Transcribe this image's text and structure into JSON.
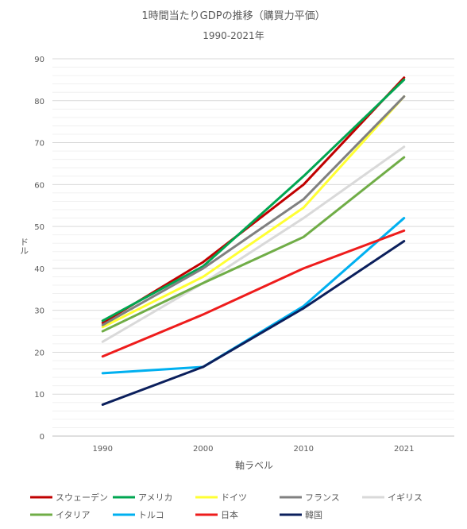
{
  "chart_data": {
    "type": "line",
    "title": "1時間当たりGDPの推移（購買力平価）",
    "subtitle": "1990-2021年",
    "xlabel": "軸ラベル",
    "ylabel": "ドル",
    "ylim": [
      0,
      90
    ],
    "yticks": [
      0,
      10,
      20,
      30,
      40,
      50,
      60,
      70,
      80,
      90
    ],
    "grid": true,
    "legend_position": "bottom",
    "categories": [
      "1990",
      "2000",
      "2010",
      "2021"
    ],
    "series": [
      {
        "name": "スウェーデン",
        "color": "#c00000",
        "values": [
          27,
          41.5,
          60,
          85.5
        ]
      },
      {
        "name": "アメリカ",
        "color": "#00a651",
        "values": [
          27.5,
          40.5,
          62,
          85
        ]
      },
      {
        "name": "ドイツ",
        "color": "#ffff33",
        "values": [
          26,
          38,
          54.5,
          81
        ]
      },
      {
        "name": "フランス",
        "color": "#808080",
        "values": [
          26.5,
          40,
          56.5,
          81
        ]
      },
      {
        "name": "イギリス",
        "color": "#d9d9d9",
        "values": [
          22.5,
          36.5,
          52,
          69
        ]
      },
      {
        "name": "イタリア",
        "color": "#70ad47",
        "values": [
          25,
          36.5,
          47.5,
          66.5
        ]
      },
      {
        "name": "トルコ",
        "color": "#00b0f0",
        "values": [
          15,
          16.5,
          31,
          52
        ]
      },
      {
        "name": "日本",
        "color": "#ee1c1c",
        "values": [
          19,
          29,
          40,
          49
        ]
      },
      {
        "name": "韓国",
        "color": "#0b1f5c",
        "values": [
          7.5,
          16.5,
          30.5,
          46.5
        ]
      }
    ]
  }
}
